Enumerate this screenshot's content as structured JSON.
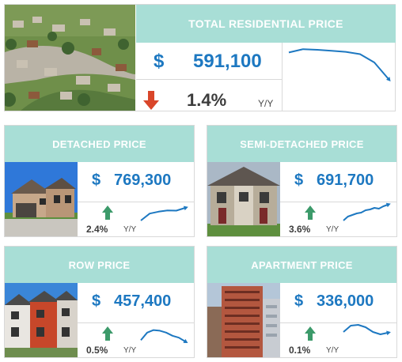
{
  "colors": {
    "header_bg": "#a8ded6",
    "price_blue": "#1d78c1",
    "arrow_up_green": "#3c9a6a",
    "arrow_down_red": "#d9462a",
    "sparkline_blue": "#1d78c1"
  },
  "total": {
    "title": "TOTAL RESIDENTIAL PRICE",
    "currency": "$",
    "price": "591,100",
    "change": "1.4%",
    "change_direction": "down",
    "period": "Y/Y",
    "trend": [
      0.2,
      0.1,
      0.12,
      0.15,
      0.18,
      0.25,
      0.5,
      1.0
    ]
  },
  "detached": {
    "title": "DETACHED PRICE",
    "currency": "$",
    "price": "769,300",
    "change": "2.4%",
    "change_direction": "up",
    "period": "Y/Y",
    "trend": [
      1.0,
      0.45,
      0.3,
      0.2,
      0.22,
      0.0
    ]
  },
  "semi": {
    "title": "SEMI-DETACHED PRICE",
    "currency": "$",
    "price": "691,700",
    "change": "3.6%",
    "change_direction": "up",
    "period": "Y/Y",
    "trend": [
      1.0,
      0.75,
      0.65,
      0.55,
      0.5,
      0.35,
      0.3,
      0.2,
      0.25,
      0.1,
      0.0
    ]
  },
  "row": {
    "title": "ROW PRICE",
    "currency": "$",
    "price": "457,400",
    "change": "0.5%",
    "change_direction": "up",
    "period": "Y/Y",
    "trend": [
      0.9,
      0.3,
      0.1,
      0.15,
      0.3,
      0.55,
      0.7,
      1.0
    ]
  },
  "apartment": {
    "title": "APARTMENT PRICE",
    "currency": "$",
    "price": "336,000",
    "change": "0.1%",
    "change_direction": "up",
    "period": "Y/Y",
    "trend": [
      0.5,
      0.1,
      0.05,
      0.2,
      0.5,
      0.65,
      0.55
    ]
  }
}
